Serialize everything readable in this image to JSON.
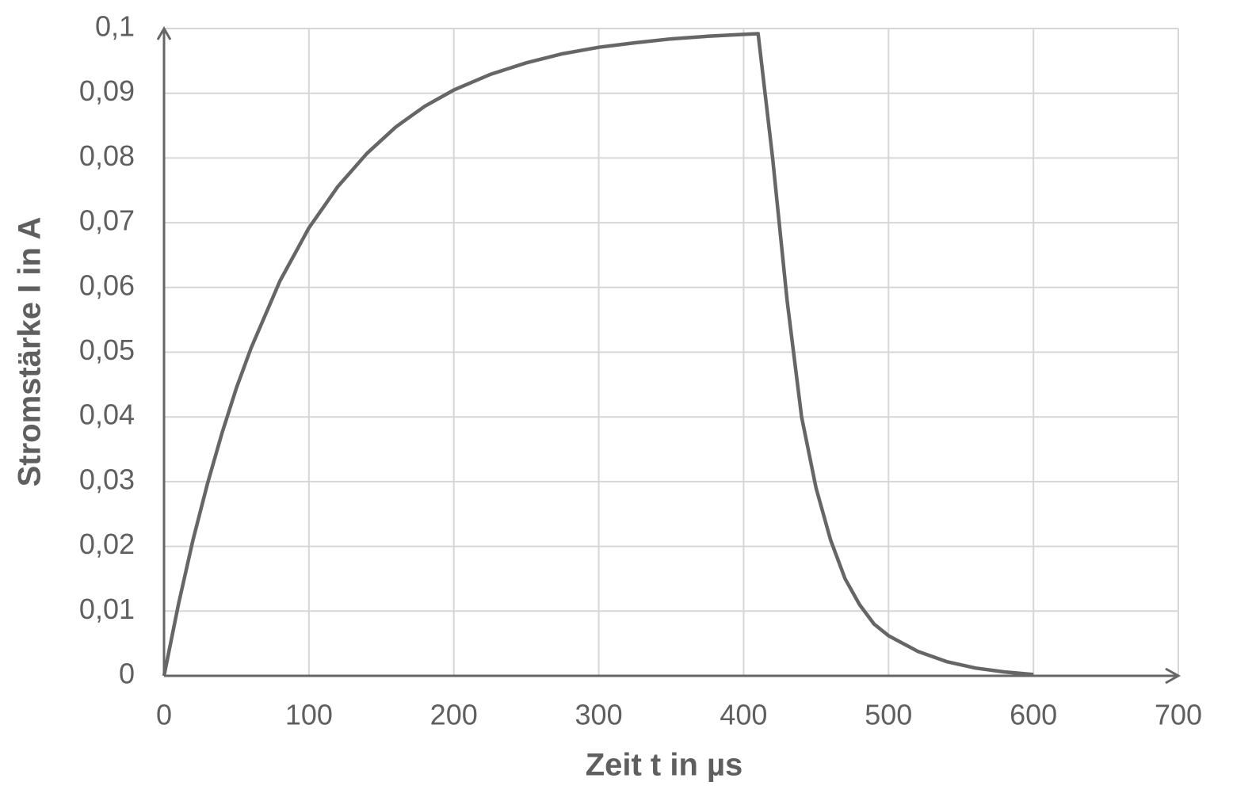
{
  "chart_data": {
    "type": "line",
    "x_label": "Zeit t in µs",
    "y_label": "Stromstärke I in A",
    "x": [
      0,
      10,
      20,
      30,
      40,
      50,
      60,
      80,
      100,
      120,
      140,
      160,
      180,
      200,
      225,
      250,
      275,
      300,
      325,
      350,
      375,
      400,
      410,
      420,
      430,
      440,
      450,
      460,
      470,
      480,
      490,
      500,
      520,
      540,
      560,
      580,
      600
    ],
    "series": [
      {
        "color": "#666666",
        "values": [
          0,
          0.0111,
          0.021,
          0.0297,
          0.0375,
          0.0445,
          0.0506,
          0.061,
          0.0692,
          0.0756,
          0.0807,
          0.0848,
          0.088,
          0.0905,
          0.0929,
          0.0947,
          0.0961,
          0.0971,
          0.0978,
          0.0984,
          0.0988,
          0.0991,
          0.0992,
          0.08,
          0.058,
          0.04,
          0.029,
          0.021,
          0.015,
          0.011,
          0.008,
          0.0062,
          0.0038,
          0.0022,
          0.0012,
          0.0006,
          0.0002
        ]
      }
    ],
    "xlim": [
      0,
      700
    ],
    "xticks": [
      0,
      100,
      200,
      300,
      400,
      500,
      600,
      700
    ],
    "ylim": [
      0,
      0.1
    ],
    "yticks": [
      {
        "value": 0,
        "label": "0"
      },
      {
        "value": 0.01,
        "label": "0,01"
      },
      {
        "value": 0.02,
        "label": "0,02"
      },
      {
        "value": 0.03,
        "label": "0,03"
      },
      {
        "value": 0.04,
        "label": "0,04"
      },
      {
        "value": 0.05,
        "label": "0,05"
      },
      {
        "value": 0.06,
        "label": "0,06"
      },
      {
        "value": 0.07,
        "label": "0,07"
      },
      {
        "value": 0.08,
        "label": "0,08"
      },
      {
        "value": 0.09,
        "label": "0,09"
      },
      {
        "value": 0.1,
        "label": "0,1"
      }
    ],
    "grid": true
  }
}
